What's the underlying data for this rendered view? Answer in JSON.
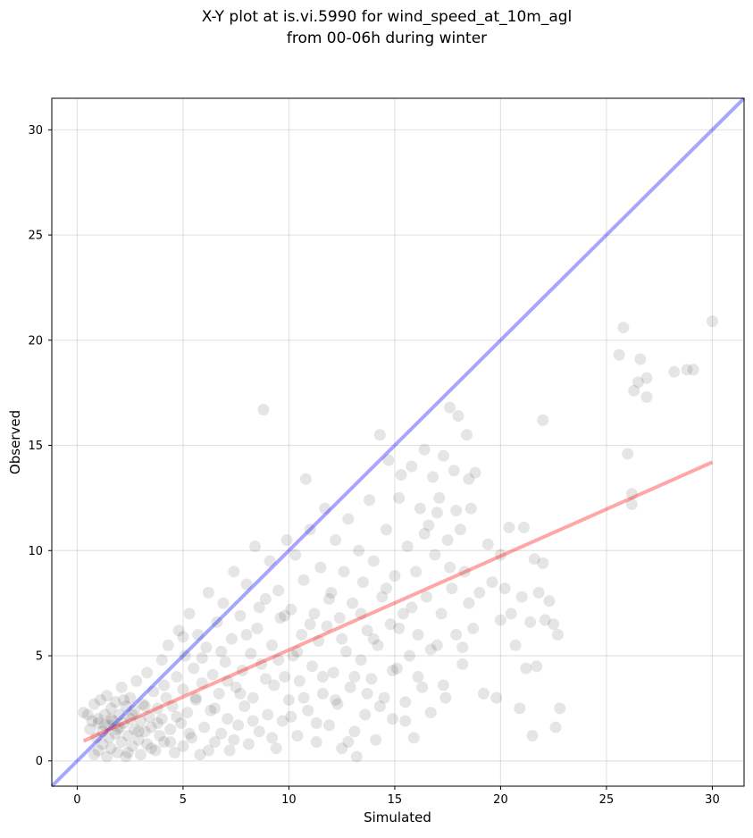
{
  "chart_data": {
    "type": "scatter",
    "title": [
      "X-Y plot at is.vi.5990 for wind_speed_at_10m_agl",
      "from 00-06h during winter"
    ],
    "xlabel": "Simulated",
    "ylabel": "Observed",
    "xlim": [
      -1.2,
      31.5
    ],
    "ylim": [
      -1.2,
      31.5
    ],
    "xticks": [
      0,
      5,
      10,
      15,
      20,
      25,
      30
    ],
    "yticks": [
      0,
      5,
      10,
      15,
      20,
      25,
      30
    ],
    "grid": true,
    "point_color": "#000000",
    "point_alpha": 0.1,
    "one_to_one_line": {
      "color": "#0000ff",
      "alpha": 0.35,
      "from": [
        -1.2,
        -1.2
      ],
      "to": [
        31.5,
        31.5
      ]
    },
    "regression_line": {
      "color": "#ff0000",
      "alpha": 0.35,
      "from": [
        0.3,
        0.95
      ],
      "to": [
        30.0,
        14.2
      ]
    },
    "points": [
      [
        0.3,
        2.3
      ],
      [
        0.5,
        2.2
      ],
      [
        0.6,
        1.5
      ],
      [
        0.7,
        1.9
      ],
      [
        0.8,
        2.7
      ],
      [
        0.8,
        0.3
      ],
      [
        0.9,
        1.1
      ],
      [
        1.0,
        0.5
      ],
      [
        1.0,
        1.8
      ],
      [
        1.1,
        2.9
      ],
      [
        1.2,
        1.4
      ],
      [
        1.2,
        0.8
      ],
      [
        1.3,
        2.2
      ],
      [
        1.4,
        3.1
      ],
      [
        1.4,
        0.2
      ],
      [
        1.5,
        1.7
      ],
      [
        1.5,
        1.1
      ],
      [
        1.6,
        2.5
      ],
      [
        1.6,
        0.6
      ],
      [
        1.7,
        1.9
      ],
      [
        1.8,
        2.8
      ],
      [
        1.8,
        1.3
      ],
      [
        1.9,
        0.4
      ],
      [
        2.0,
        1.6
      ],
      [
        2.0,
        2.2
      ],
      [
        2.1,
        3.5
      ],
      [
        2.1,
        0.9
      ],
      [
        2.2,
        1.8
      ],
      [
        2.3,
        2.6
      ],
      [
        2.3,
        0.2
      ],
      [
        2.4,
        1.2
      ],
      [
        2.5,
        2.0
      ],
      [
        2.5,
        3.0
      ],
      [
        2.6,
        0.7
      ],
      [
        2.7,
        1.5
      ],
      [
        2.7,
        2.4
      ],
      [
        2.8,
        3.8
      ],
      [
        2.9,
        1.0
      ],
      [
        3.0,
        1.9
      ],
      [
        3.0,
        0.3
      ],
      [
        3.1,
        2.7
      ],
      [
        3.2,
        1.4
      ],
      [
        3.3,
        4.2
      ],
      [
        3.3,
        0.8
      ],
      [
        3.4,
        2.1
      ],
      [
        3.5,
        1.6
      ],
      [
        3.6,
        3.3
      ],
      [
        3.7,
        0.5
      ],
      [
        3.8,
        2.5
      ],
      [
        3.9,
        1.2
      ],
      [
        4.0,
        4.8
      ],
      [
        4.0,
        2.0
      ],
      [
        4.1,
        0.9
      ],
      [
        4.2,
        3.0
      ],
      [
        4.3,
        5.5
      ],
      [
        4.4,
        1.5
      ],
      [
        4.5,
        2.6
      ],
      [
        4.6,
        0.4
      ],
      [
        4.7,
        4.0
      ],
      [
        4.8,
        6.2
      ],
      [
        4.9,
        1.8
      ],
      [
        5.0,
        3.4
      ],
      [
        5.0,
        0.7
      ],
      [
        5.1,
        5.0
      ],
      [
        5.2,
        2.3
      ],
      [
        5.3,
        7.0
      ],
      [
        5.4,
        1.1
      ],
      [
        5.5,
        4.4
      ],
      [
        5.6,
        2.9
      ],
      [
        5.7,
        6.0
      ],
      [
        5.8,
        0.3
      ],
      [
        5.9,
        3.7
      ],
      [
        6.0,
        1.6
      ],
      [
        6.1,
        5.4
      ],
      [
        6.2,
        8.0
      ],
      [
        6.3,
        2.4
      ],
      [
        6.4,
        4.1
      ],
      [
        6.5,
        0.9
      ],
      [
        6.6,
        6.6
      ],
      [
        6.7,
        3.2
      ],
      [
        6.8,
        1.3
      ],
      [
        6.9,
        7.5
      ],
      [
        7.0,
        4.7
      ],
      [
        7.1,
        2.0
      ],
      [
        7.2,
        0.5
      ],
      [
        7.3,
        5.8
      ],
      [
        7.4,
        9.0
      ],
      [
        7.5,
        3.5
      ],
      [
        7.6,
        1.7
      ],
      [
        7.7,
        6.9
      ],
      [
        7.8,
        4.3
      ],
      [
        7.9,
        2.6
      ],
      [
        8.0,
        8.4
      ],
      [
        8.1,
        0.8
      ],
      [
        8.2,
        5.1
      ],
      [
        8.3,
        3.0
      ],
      [
        8.4,
        10.2
      ],
      [
        8.5,
        6.3
      ],
      [
        8.6,
        1.4
      ],
      [
        8.7,
        4.6
      ],
      [
        8.8,
        16.7
      ],
      [
        8.9,
        7.7
      ],
      [
        9.0,
        2.2
      ],
      [
        9.1,
        9.5
      ],
      [
        9.2,
        5.5
      ],
      [
        9.3,
        3.6
      ],
      [
        9.4,
        0.6
      ],
      [
        9.5,
        8.1
      ],
      [
        9.6,
        6.8
      ],
      [
        9.7,
        1.9
      ],
      [
        9.8,
        4.0
      ],
      [
        9.9,
        10.5
      ],
      [
        10.0,
        2.9
      ],
      [
        10.1,
        7.2
      ],
      [
        10.2,
        5.0
      ],
      [
        10.3,
        9.8
      ],
      [
        10.4,
        1.2
      ],
      [
        10.5,
        3.8
      ],
      [
        10.6,
        6.0
      ],
      [
        10.7,
        8.6
      ],
      [
        10.8,
        13.4
      ],
      [
        10.9,
        2.4
      ],
      [
        11.0,
        11.0
      ],
      [
        11.1,
        4.5
      ],
      [
        11.2,
        7.0
      ],
      [
        11.3,
        0.9
      ],
      [
        11.4,
        5.7
      ],
      [
        11.5,
        9.2
      ],
      [
        11.6,
        3.2
      ],
      [
        11.7,
        12.0
      ],
      [
        11.8,
        6.4
      ],
      [
        11.9,
        1.7
      ],
      [
        12.0,
        8.0
      ],
      [
        12.1,
        4.2
      ],
      [
        12.2,
        10.5
      ],
      [
        12.3,
        2.7
      ],
      [
        12.4,
        6.8
      ],
      [
        12.5,
        0.6
      ],
      [
        12.6,
        9.0
      ],
      [
        12.7,
        5.2
      ],
      [
        12.8,
        11.5
      ],
      [
        12.9,
        3.5
      ],
      [
        13.0,
        7.5
      ],
      [
        13.1,
        1.4
      ],
      [
        13.2,
        0.2
      ],
      [
        13.3,
        10.0
      ],
      [
        13.4,
        4.8
      ],
      [
        13.5,
        8.5
      ],
      [
        13.6,
        2.2
      ],
      [
        13.7,
        6.2
      ],
      [
        13.8,
        12.4
      ],
      [
        13.9,
        3.9
      ],
      [
        14.0,
        9.5
      ],
      [
        14.1,
        1.0
      ],
      [
        14.2,
        5.5
      ],
      [
        14.3,
        15.5
      ],
      [
        14.4,
        7.8
      ],
      [
        14.5,
        3.0
      ],
      [
        14.6,
        11.0
      ],
      [
        14.7,
        14.3
      ],
      [
        14.8,
        6.5
      ],
      [
        14.9,
        2.0
      ],
      [
        15.0,
        8.8
      ],
      [
        15.1,
        4.4
      ],
      [
        15.2,
        12.5
      ],
      [
        15.3,
        13.6
      ],
      [
        15.4,
        7.0
      ],
      [
        15.5,
        2.8
      ],
      [
        15.6,
        10.2
      ],
      [
        15.7,
        5.0
      ],
      [
        15.8,
        14.0
      ],
      [
        15.9,
        1.1
      ],
      [
        16.0,
        9.0
      ],
      [
        16.1,
        6.0
      ],
      [
        16.2,
        12.0
      ],
      [
        16.3,
        3.5
      ],
      [
        16.4,
        14.8
      ],
      [
        16.5,
        7.8
      ],
      [
        16.6,
        11.2
      ],
      [
        16.7,
        2.3
      ],
      [
        16.8,
        13.5
      ],
      [
        16.9,
        9.8
      ],
      [
        17.0,
        5.5
      ],
      [
        17.1,
        12.5
      ],
      [
        17.2,
        7.0
      ],
      [
        17.3,
        14.5
      ],
      [
        17.4,
        3.0
      ],
      [
        17.5,
        10.5
      ],
      [
        17.6,
        16.8
      ],
      [
        17.7,
        8.2
      ],
      [
        17.8,
        13.8
      ],
      [
        17.9,
        6.0
      ],
      [
        18.0,
        16.4
      ],
      [
        18.1,
        11.0
      ],
      [
        18.2,
        4.6
      ],
      [
        18.3,
        9.0
      ],
      [
        18.4,
        15.5
      ],
      [
        18.5,
        7.5
      ],
      [
        18.6,
        12.0
      ],
      [
        18.7,
        6.3
      ],
      [
        18.8,
        13.7
      ],
      [
        19.0,
        8.0
      ],
      [
        19.2,
        3.2
      ],
      [
        19.4,
        10.3
      ],
      [
        19.6,
        8.5
      ],
      [
        19.8,
        3.0
      ],
      [
        20.0,
        6.7
      ],
      [
        20.0,
        9.8
      ],
      [
        20.2,
        8.2
      ],
      [
        20.4,
        11.1
      ],
      [
        20.5,
        7.0
      ],
      [
        20.7,
        5.5
      ],
      [
        20.9,
        2.5
      ],
      [
        21.0,
        7.8
      ],
      [
        21.1,
        11.1
      ],
      [
        21.2,
        4.4
      ],
      [
        21.4,
        6.6
      ],
      [
        21.5,
        1.2
      ],
      [
        21.6,
        9.6
      ],
      [
        21.7,
        4.5
      ],
      [
        21.8,
        8.0
      ],
      [
        22.0,
        9.4
      ],
      [
        22.0,
        16.2
      ],
      [
        22.1,
        6.7
      ],
      [
        22.3,
        7.6
      ],
      [
        22.5,
        6.5
      ],
      [
        22.6,
        1.6
      ],
      [
        22.7,
        6.0
      ],
      [
        22.8,
        2.5
      ],
      [
        25.6,
        19.3
      ],
      [
        25.8,
        20.6
      ],
      [
        26.0,
        14.6
      ],
      [
        26.2,
        12.7
      ],
      [
        26.2,
        12.2
      ],
      [
        26.3,
        17.6
      ],
      [
        26.5,
        18.0
      ],
      [
        26.6,
        19.1
      ],
      [
        26.9,
        18.2
      ],
      [
        26.9,
        17.3
      ],
      [
        28.2,
        18.5
      ],
      [
        28.8,
        18.6
      ],
      [
        29.1,
        18.6
      ],
      [
        30.0,
        20.9
      ],
      [
        1.0,
        2.0
      ],
      [
        1.3,
        1.7
      ],
      [
        1.6,
        2.0
      ],
      [
        1.9,
        1.5
      ],
      [
        2.2,
        2.9
      ],
      [
        2.4,
        0.4
      ],
      [
        2.6,
        2.2
      ],
      [
        2.9,
        1.4
      ],
      [
        3.2,
        2.6
      ],
      [
        3.5,
        0.6
      ],
      [
        3.8,
        1.8
      ],
      [
        4.1,
        3.6
      ],
      [
        4.4,
        0.9
      ],
      [
        4.7,
        2.1
      ],
      [
        5.0,
        5.9
      ],
      [
        5.3,
        1.3
      ],
      [
        5.6,
        3.0
      ],
      [
        5.9,
        4.9
      ],
      [
        6.2,
        0.5
      ],
      [
        6.5,
        2.5
      ],
      [
        6.8,
        5.2
      ],
      [
        7.1,
        3.8
      ],
      [
        7.4,
        1.0
      ],
      [
        7.7,
        3.2
      ],
      [
        8.0,
        6.0
      ],
      [
        8.3,
        1.9
      ],
      [
        8.6,
        7.3
      ],
      [
        8.9,
        3.9
      ],
      [
        9.2,
        1.1
      ],
      [
        9.5,
        4.8
      ],
      [
        9.8,
        6.9
      ],
      [
        10.1,
        2.1
      ],
      [
        10.4,
        5.2
      ],
      [
        10.7,
        3.0
      ],
      [
        11.0,
        6.5
      ],
      [
        11.3,
        1.8
      ],
      [
        11.6,
        4.0
      ],
      [
        11.9,
        7.7
      ],
      [
        12.2,
        2.9
      ],
      [
        12.5,
        5.8
      ],
      [
        12.8,
        0.9
      ],
      [
        13.1,
        4.0
      ],
      [
        13.4,
        7.0
      ],
      [
        13.7,
        3.2
      ],
      [
        14.0,
        5.8
      ],
      [
        14.3,
        2.6
      ],
      [
        14.6,
        8.2
      ],
      [
        14.9,
        4.3
      ],
      [
        15.2,
        6.3
      ],
      [
        15.5,
        1.9
      ],
      [
        15.8,
        7.3
      ],
      [
        16.1,
        4.0
      ],
      [
        16.4,
        10.8
      ],
      [
        16.7,
        5.3
      ],
      [
        17.0,
        11.8
      ],
      [
        17.3,
        3.6
      ],
      [
        17.6,
        9.2
      ],
      [
        17.9,
        11.9
      ],
      [
        18.2,
        5.4
      ],
      [
        18.5,
        13.4
      ]
    ]
  }
}
